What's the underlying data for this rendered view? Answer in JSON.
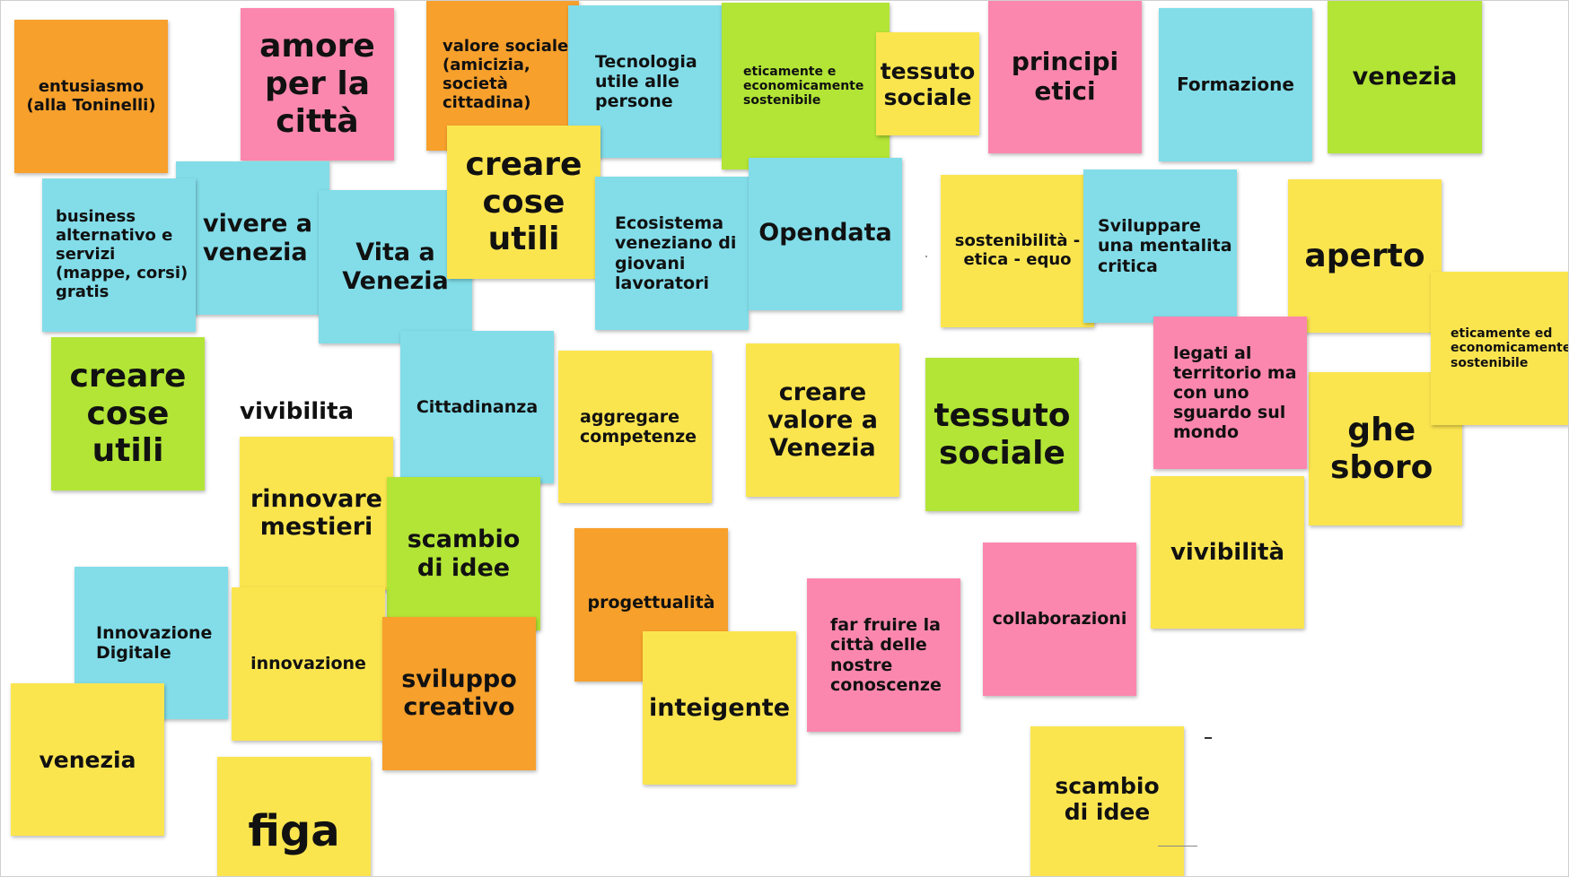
{
  "board": {
    "notes": {
      "entusiasmo": "entusiasmo\n(alla Toninelli)",
      "amore": "amore\nper la\ncittà",
      "valore_sociale": "valore sociale\n(amicizia,\nsocietà\ncittadina)",
      "tecnologia": "Tecnologia\nutile alle\npersone",
      "eticamente_top": "eticamente e\neconomicamente\nsostenibile",
      "tessuto_top": "tessuto\nsociale",
      "principi": "principi\netici",
      "formazione": "Formazione",
      "venezia_top": "venezia",
      "business": "business\nalternativo e\nservizi\n(mappe, corsi)\ngratis",
      "vivere": "vivere a\nvenezia",
      "vita": "Vita a\nVenezia",
      "creare_cose_top": "creare\ncose\nutili",
      "ecosistema": "Ecosistema\nveneziano di\ngiovani\nlavoratori",
      "opendata": "Opendata",
      "sostenibilita": "sostenibilità -\netica - equo",
      "sviluppare": "Sviluppare\nuna mentalita\ncritica",
      "aperto": "aperto",
      "eticamente_right": "eticamente ed\neconomicamente\nsostenibile",
      "creare_cose_left": "creare\ncose\nutili",
      "vivibilita_plain": "vivibilita",
      "cittadinanza": "Cittadinanza",
      "aggregare": "aggregare\ncompetenze",
      "creare_valore": "creare\nvalore a\nVenezia",
      "tessuto_mid": "tessuto\nsociale",
      "legati": "legati al\nterritorio ma\ncon uno\nsguardo sul\nmondo",
      "ghe_sboro": "ghe\nsboro",
      "rinnovare": "rinnovare\nmestieri",
      "scambio_mid": "scambio\ndi idee",
      "vivibilita_note": "vivibilità",
      "innovazione_digitale": "Innovazione\nDigitale",
      "innovazione": "innovazione",
      "sviluppo": "sviluppo\ncreativo",
      "progettualita": "progettualità",
      "inteigente": "inteigente",
      "far_fruire": "far fruire la\ncittà delle\nnostre\nconoscenze",
      "collaborazioni": "collaborazioni",
      "venezia_bottom": "venezia",
      "figa": "figa",
      "scambio_bottom": "scambio\ndi idee"
    }
  },
  "colors": {
    "orange": "#f7a02c",
    "pink": "#fc87ae",
    "cyan": "#82dde9",
    "green": "#b2e536",
    "yellow": "#fbe54f"
  }
}
